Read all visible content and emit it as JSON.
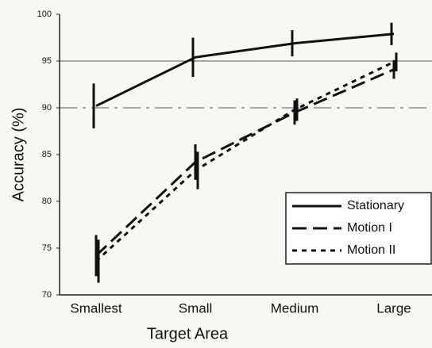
{
  "chart_data": {
    "type": "line",
    "xlabel": "Target Area",
    "ylabel": "Accuracy (%)",
    "categories": [
      "Smallest",
      "Small",
      "Medium",
      "Large"
    ],
    "series": [
      {
        "name": "Stationary",
        "color": "#111111",
        "linestyle": "solid",
        "values": [
          90.2,
          95.4,
          96.9,
          97.9
        ],
        "errors": [
          2.4,
          2.1,
          1.4,
          1.2
        ]
      },
      {
        "name": "Motion I",
        "color": "#111111",
        "linestyle": "dashed",
        "values": [
          74.2,
          84.2,
          89.5,
          94.1
        ],
        "errors": [
          2.2,
          1.9,
          1.3,
          1.0
        ]
      },
      {
        "name": "Motion II",
        "color": "#111111",
        "linestyle": "dotted",
        "values": [
          73.6,
          83.3,
          89.8,
          94.9
        ],
        "errors": [
          2.3,
          2.0,
          1.2,
          1.0
        ]
      }
    ],
    "ylim": [
      70,
      100
    ],
    "yticks": [
      70,
      75,
      80,
      85,
      90,
      95,
      100
    ],
    "reference_lines": [
      {
        "y": 95,
        "linestyle": "solid"
      },
      {
        "y": 90,
        "linestyle": "dashdot"
      }
    ],
    "legend": "lower right"
  }
}
